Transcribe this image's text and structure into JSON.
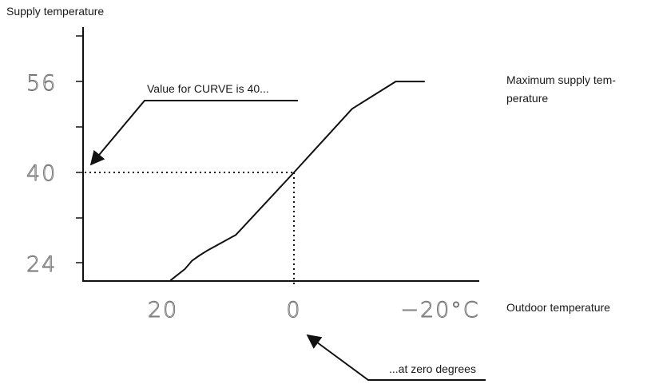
{
  "labels": {
    "y_axis_title": "Supply temperature",
    "x_axis_title": "Outdoor temperature",
    "max_note_line1": "Maximum supply tem-",
    "max_note_line2": "perature",
    "curve_note": "Value for CURVE is 40...",
    "zero_note": "...at zero degrees"
  },
  "y_ticks": [
    "56",
    "40",
    "24"
  ],
  "x_ticks": [
    "20",
    "0",
    "−20°C"
  ],
  "chart_data": {
    "type": "line",
    "series": [
      {
        "x": [
          17,
          15,
          14,
          13,
          12,
          10,
          8,
          0,
          -8,
          -14,
          -18
        ],
        "y": [
          21,
          23,
          24.5,
          25.4,
          26.2,
          27.6,
          29,
          40,
          51.2,
          56,
          56
        ]
      }
    ],
    "xlabel": "Outdoor temperature",
    "ylabel": "Supply temperature",
    "x_reversed": true,
    "highlight_point": {
      "x": 0,
      "y": 40
    },
    "y_ticks": [
      56,
      40,
      24
    ],
    "x_ticks": [
      20,
      0,
      -20
    ],
    "colors": {
      "line": "#111111",
      "guide": "#111111",
      "tick_text": "#6e6e6e"
    }
  }
}
